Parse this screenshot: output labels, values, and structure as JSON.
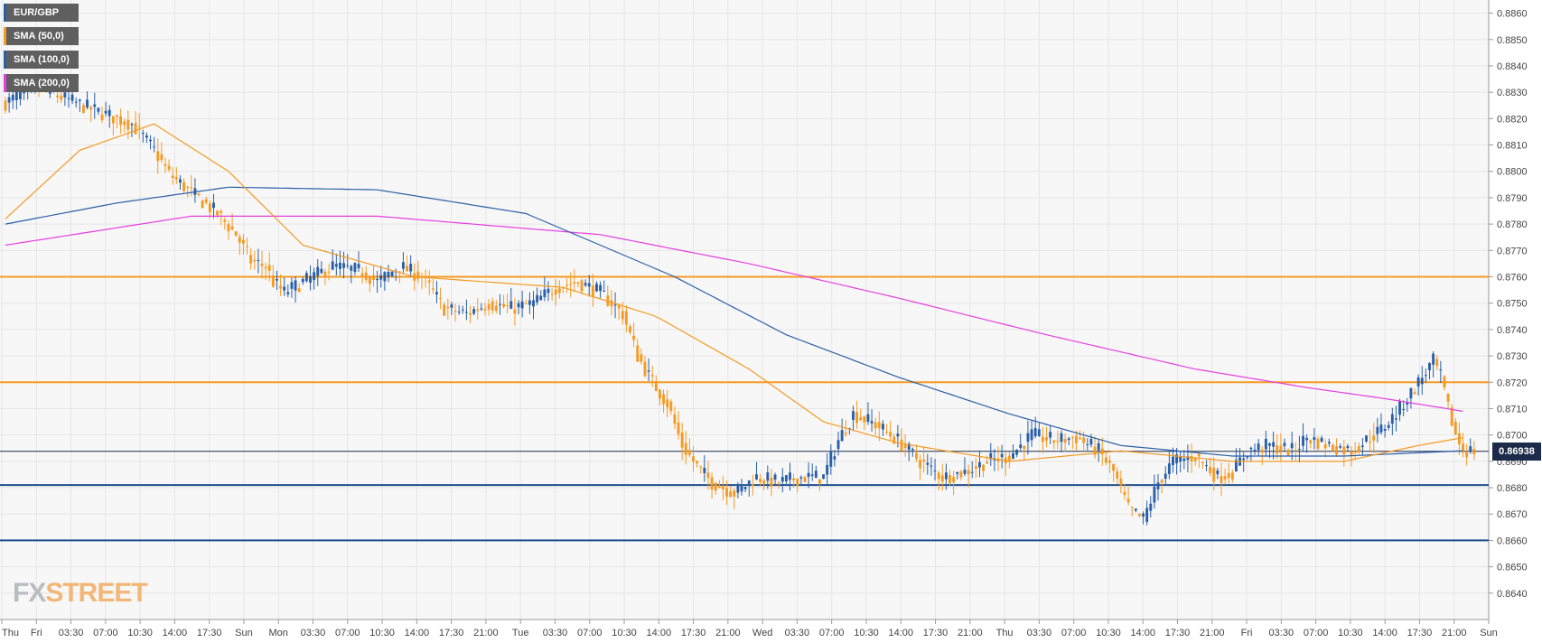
{
  "legend": {
    "symbol": "EUR/GBP",
    "sma50": "SMA (50,0)",
    "sma100": "SMA (100,0)",
    "sma200": "SMA (200,0)"
  },
  "logo": {
    "part1": "FX",
    "part2": "STREET"
  },
  "current_price_label": "0.86938",
  "colors": {
    "bull_candle": "#2a5fa8",
    "bear_candle": "#f59a23",
    "sma50": "#f59a23",
    "sma100": "#2a5fa8",
    "sma200": "#e63ee0",
    "resistance": "#f59a23",
    "support": "#1f4e8c",
    "price_line": "#1c2b4a",
    "grid": "#e6e6e6",
    "plot_bg": "#f7f7f7"
  },
  "chart_data": {
    "type": "candlestick",
    "symbol": "EUR/GBP",
    "ylim": [
      0.863,
      0.8865
    ],
    "y_ticks": [
      "0.8640",
      "0.8650",
      "0.8660",
      "0.8670",
      "0.8680",
      "0.8690",
      "0.8700",
      "0.8710",
      "0.8720",
      "0.8730",
      "0.8740",
      "0.8750",
      "0.8760",
      "0.8770",
      "0.8780",
      "0.8790",
      "0.8800",
      "0.8810",
      "0.8820",
      "0.8830",
      "0.8840",
      "0.8850",
      "0.8860"
    ],
    "x_ticks": [
      "Thu",
      "Fri",
      "03:30",
      "07:00",
      "10:30",
      "14:00",
      "17:30",
      "Sun",
      "Mon",
      "03:30",
      "07:00",
      "10:30",
      "14:00",
      "17:30",
      "21:00",
      "Tue",
      "03:30",
      "07:00",
      "10:30",
      "14:00",
      "17:30",
      "21:00",
      "Wed",
      "03:30",
      "07:00",
      "10:30",
      "14:00",
      "17:30",
      "21:00",
      "Thu",
      "03:30",
      "07:00",
      "10:30",
      "14:00",
      "17:30",
      "21:00",
      "Fri",
      "03:30",
      "07:00",
      "10:30",
      "14:00",
      "17:30",
      "21:00",
      "Sun"
    ],
    "grid": true,
    "horizontal_levels": [
      {
        "value": 0.876,
        "kind": "resistance"
      },
      {
        "value": 0.872,
        "kind": "resistance"
      },
      {
        "value": 0.8681,
        "kind": "support"
      },
      {
        "value": 0.866,
        "kind": "support"
      }
    ],
    "current_price": 0.86938,
    "price_path": [
      [
        0,
        0.8826
      ],
      [
        8,
        0.8832
      ],
      [
        17,
        0.8827
      ],
      [
        26,
        0.8822
      ],
      [
        34,
        0.8818
      ],
      [
        40,
        0.8808
      ],
      [
        44,
        0.8799
      ],
      [
        50,
        0.8792
      ],
      [
        57,
        0.8784
      ],
      [
        62,
        0.8776
      ],
      [
        66,
        0.8766
      ],
      [
        70,
        0.8764
      ],
      [
        72,
        0.8758
      ],
      [
        75,
        0.8754
      ],
      [
        80,
        0.8758
      ],
      [
        88,
        0.8764
      ],
      [
        96,
        0.8762
      ],
      [
        100,
        0.8758
      ],
      [
        106,
        0.8764
      ],
      [
        112,
        0.876
      ],
      [
        118,
        0.8748
      ],
      [
        124,
        0.8746
      ],
      [
        130,
        0.875
      ],
      [
        136,
        0.8748
      ],
      [
        142,
        0.875
      ],
      [
        148,
        0.8756
      ],
      [
        154,
        0.8758
      ],
      [
        160,
        0.8754
      ],
      [
        166,
        0.8746
      ],
      [
        170,
        0.873
      ],
      [
        174,
        0.872
      ],
      [
        178,
        0.8712
      ],
      [
        182,
        0.8696
      ],
      [
        186,
        0.8688
      ],
      [
        190,
        0.8682
      ],
      [
        196,
        0.8678
      ],
      [
        202,
        0.8684
      ],
      [
        208,
        0.8682
      ],
      [
        214,
        0.8684
      ],
      [
        220,
        0.8684
      ],
      [
        224,
        0.8698
      ],
      [
        228,
        0.8708
      ],
      [
        234,
        0.8704
      ],
      [
        240,
        0.8698
      ],
      [
        246,
        0.869
      ],
      [
        252,
        0.8684
      ],
      [
        258,
        0.8686
      ],
      [
        264,
        0.869
      ],
      [
        270,
        0.8692
      ],
      [
        276,
        0.87
      ],
      [
        282,
        0.8698
      ],
      [
        288,
        0.8699
      ],
      [
        294,
        0.8694
      ],
      [
        298,
        0.8686
      ],
      [
        302,
        0.8672
      ],
      [
        306,
        0.8668
      ],
      [
        310,
        0.8682
      ],
      [
        314,
        0.869
      ],
      [
        320,
        0.8692
      ],
      [
        326,
        0.8684
      ],
      [
        330,
        0.8686
      ],
      [
        334,
        0.8694
      ],
      [
        340,
        0.8696
      ],
      [
        346,
        0.8694
      ],
      [
        350,
        0.8699
      ],
      [
        356,
        0.8696
      ],
      [
        362,
        0.8694
      ],
      [
        366,
        0.8698
      ],
      [
        370,
        0.8702
      ],
      [
        374,
        0.8708
      ],
      [
        378,
        0.8716
      ],
      [
        382,
        0.8724
      ],
      [
        384,
        0.8728
      ],
      [
        386,
        0.8722
      ],
      [
        388,
        0.871
      ],
      [
        390,
        0.87
      ],
      [
        392,
        0.8694
      ]
    ],
    "sma50_path": [
      [
        0,
        0.8782
      ],
      [
        20,
        0.8808
      ],
      [
        40,
        0.8818
      ],
      [
        60,
        0.88
      ],
      [
        80,
        0.8772
      ],
      [
        110,
        0.876
      ],
      [
        150,
        0.8756
      ],
      [
        175,
        0.8745
      ],
      [
        200,
        0.8725
      ],
      [
        220,
        0.8705
      ],
      [
        240,
        0.8697
      ],
      [
        270,
        0.869
      ],
      [
        300,
        0.8694
      ],
      [
        330,
        0.869
      ],
      [
        360,
        0.869
      ],
      [
        380,
        0.8696
      ],
      [
        392,
        0.8699
      ]
    ],
    "sma100_path": [
      [
        0,
        0.878
      ],
      [
        30,
        0.8788
      ],
      [
        60,
        0.8794
      ],
      [
        100,
        0.8793
      ],
      [
        140,
        0.8784
      ],
      [
        180,
        0.876
      ],
      [
        210,
        0.8738
      ],
      [
        240,
        0.8722
      ],
      [
        270,
        0.8708
      ],
      [
        300,
        0.8696
      ],
      [
        330,
        0.8692
      ],
      [
        360,
        0.8692
      ],
      [
        392,
        0.8694
      ]
    ],
    "sma200_path": [
      [
        0,
        0.8772
      ],
      [
        50,
        0.8783
      ],
      [
        100,
        0.8783
      ],
      [
        160,
        0.8776
      ],
      [
        200,
        0.8765
      ],
      [
        240,
        0.8752
      ],
      [
        280,
        0.8738
      ],
      [
        320,
        0.8725
      ],
      [
        350,
        0.8718
      ],
      [
        370,
        0.8714
      ],
      [
        392,
        0.8709
      ]
    ]
  }
}
